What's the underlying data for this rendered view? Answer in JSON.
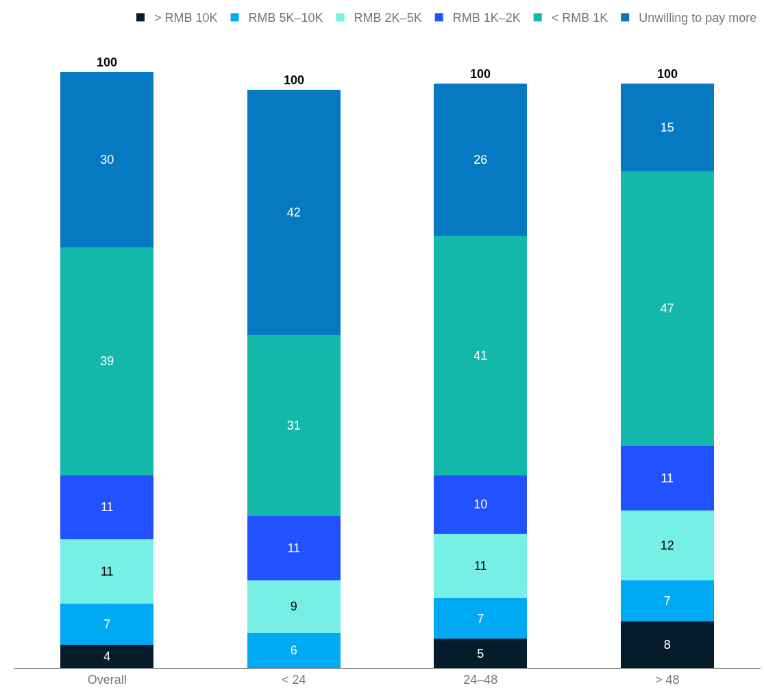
{
  "chart_data": {
    "type": "bar",
    "stacked": true,
    "data_labels": true,
    "legend": "top",
    "tick_labels": "x",
    "categories": [
      "Overall",
      "< 24",
      "24–48",
      "> 48"
    ],
    "ylim": [
      0,
      102
    ],
    "totals": [
      "100",
      "100",
      "100",
      "100"
    ],
    "series": [
      {
        "name": "> RMB 10K",
        "color": "#051c2c",
        "values": [
          4,
          null,
          5,
          8
        ]
      },
      {
        "name": "RMB 5K–10K",
        "color": "#00a9f4",
        "values": [
          7,
          6,
          7,
          7
        ]
      },
      {
        "name": "RMB 2K–5K",
        "color": "#76f0e5",
        "values": [
          11,
          9,
          11,
          12
        ]
      },
      {
        "name": "RMB 1K–2K",
        "color": "#2251ff",
        "values": [
          11,
          11,
          10,
          11
        ]
      },
      {
        "name": "< RMB 1K",
        "color": "#14b8ab",
        "values": [
          39,
          31,
          41,
          47
        ]
      },
      {
        "name": "Unwilling to pay more",
        "color": "#0679c3",
        "values": [
          30,
          42,
          26,
          15
        ]
      }
    ]
  }
}
